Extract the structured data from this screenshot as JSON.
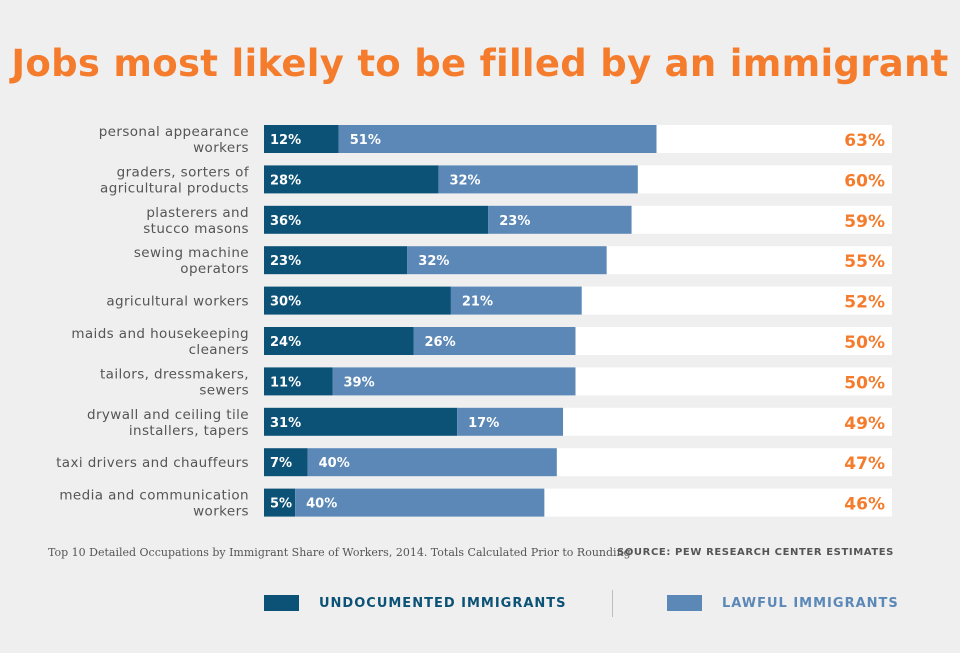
{
  "title": "Jobs most likely to be filled by an immigrant",
  "colors": {
    "undocumented": "#0b5276",
    "lawful": "#5b88b7",
    "total": "#f47c2c",
    "row_bg": "#ffffff"
  },
  "chart_data": {
    "type": "bar",
    "stacked": true,
    "orientation": "horizontal",
    "categories": [
      [
        "personal appearance",
        "workers"
      ],
      [
        "graders, sorters of",
        "agricultural products"
      ],
      [
        "plasterers and",
        "stucco masons"
      ],
      [
        "sewing machine",
        "operators"
      ],
      [
        "agricultural workers"
      ],
      [
        "maids and housekeeping",
        "cleaners"
      ],
      [
        "tailors, dressmakers,",
        "sewers"
      ],
      [
        "drywall and ceiling tile",
        "installers, tapers"
      ],
      [
        "taxi drivers and chauffeurs"
      ],
      [
        "media and communication",
        "workers"
      ]
    ],
    "series": [
      {
        "name": "UNDOCUMENTED IMMIGRANTS",
        "values": [
          12,
          28,
          36,
          23,
          30,
          24,
          11,
          31,
          7,
          5
        ]
      },
      {
        "name": "LAWFUL IMMIGRANTS",
        "values": [
          51,
          32,
          23,
          32,
          21,
          26,
          39,
          17,
          40,
          40
        ]
      }
    ],
    "totals": [
      63,
      60,
      59,
      55,
      52,
      50,
      50,
      49,
      47,
      46
    ],
    "xlim": [
      0,
      100
    ],
    "legend": "bottom"
  },
  "footnote": "Top 10 Detailed Occupations by Immigrant Share of Workers, 2014. Totals Calculated Prior to Rounding",
  "source": "SOURCE: PEW RESEARCH CENTER ESTIMATES",
  "legend": {
    "undocumented_label": "UNDOCUMENTED IMMIGRANTS",
    "lawful_label": "LAWFUL IMMIGRANTS"
  }
}
